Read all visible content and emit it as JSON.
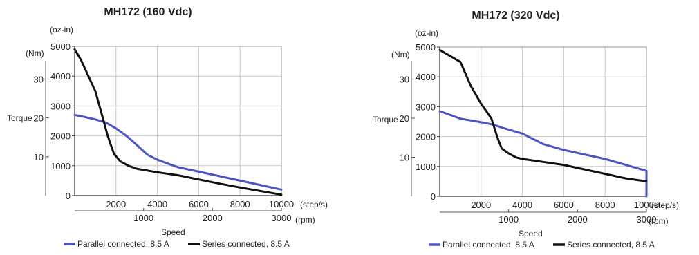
{
  "chart_data": [
    {
      "type": "line",
      "title": "MH172 (160 Vdc)",
      "y_unit_ozin": "(oz-in)",
      "y_unit_nm": "(Nm)",
      "ylabel": "Torque",
      "xlabel": "Speed",
      "x_unit_steps": "(step/s)",
      "x_unit_rpm": "(rpm)",
      "xlim": [
        0,
        10000
      ],
      "ylim": [
        0,
        5000
      ],
      "x_ticks": [
        "2000",
        "4000",
        "6000",
        "8000",
        "10000"
      ],
      "y_ticks": [
        "0",
        "1000",
        "2000",
        "3000",
        "4000",
        "5000"
      ],
      "nm_ticks": [
        "10",
        "20",
        "30"
      ],
      "rpm_ticks": [
        "1000",
        "2000",
        "3000"
      ],
      "grid": true,
      "legend_position": "bottom",
      "series": [
        {
          "name": "Parallel connected, 8.5 A",
          "color": "#4a55c4",
          "x": [
            0,
            500,
            1000,
            1500,
            2000,
            2500,
            3000,
            3500,
            4000,
            5000,
            6000,
            7000,
            8000,
            9000,
            10000
          ],
          "y": [
            2700,
            2630,
            2550,
            2450,
            2250,
            2000,
            1700,
            1380,
            1200,
            950,
            800,
            650,
            500,
            350,
            200
          ]
        },
        {
          "name": "Series connected, 8.5 A",
          "color": "#111111",
          "x": [
            0,
            300,
            600,
            1000,
            1300,
            1600,
            1900,
            2200,
            2600,
            3000,
            4000,
            5000,
            6000,
            7000,
            8000,
            9000,
            10000
          ],
          "y": [
            4900,
            4550,
            4100,
            3500,
            2750,
            2000,
            1400,
            1150,
            1000,
            900,
            780,
            680,
            540,
            400,
            270,
            150,
            30
          ]
        }
      ]
    },
    {
      "type": "line",
      "title": "MH172 (320 Vdc)",
      "y_unit_ozin": "(oz-in)",
      "y_unit_nm": "(Nm)",
      "ylabel": "Torque",
      "xlabel": "Speed",
      "x_unit_steps": "(step/s)",
      "x_unit_rpm": "(rpm)",
      "xlim": [
        0,
        10000
      ],
      "ylim": [
        0,
        5000
      ],
      "x_ticks": [
        "2000",
        "4000",
        "6000",
        "8000",
        "10000"
      ],
      "y_ticks": [
        "0",
        "1000",
        "2000",
        "3000",
        "4000",
        "5000"
      ],
      "nm_ticks": [
        "10",
        "20",
        "30"
      ],
      "rpm_ticks": [
        "1000",
        "2000",
        "3000"
      ],
      "grid": true,
      "legend_position": "bottom",
      "series": [
        {
          "name": "Parallel connected, 8.5 A",
          "color": "#4a55c4",
          "x": [
            0,
            1000,
            2000,
            2600,
            3000,
            4000,
            5000,
            6000,
            7000,
            8000,
            9000,
            10000
          ],
          "y": [
            2850,
            2600,
            2480,
            2400,
            2300,
            2100,
            1750,
            1550,
            1400,
            1250,
            1050,
            850
          ],
          "end_drop": true
        },
        {
          "name": "Series connected, 8.5 A",
          "color": "#111111",
          "x": [
            0,
            1000,
            1500,
            2000,
            2500,
            2800,
            3000,
            3300,
            3700,
            4000,
            5000,
            6000,
            7000,
            8000,
            9000,
            10000
          ],
          "y": [
            4900,
            4500,
            3700,
            3100,
            2600,
            1950,
            1600,
            1450,
            1300,
            1250,
            1150,
            1050,
            900,
            750,
            600,
            500
          ]
        }
      ]
    }
  ]
}
